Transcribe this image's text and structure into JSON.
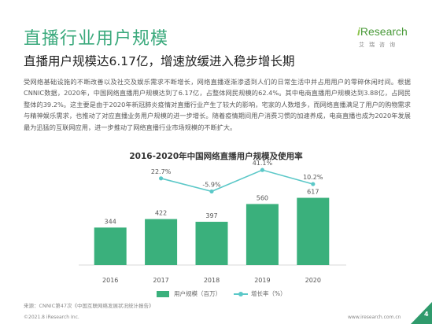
{
  "header": {
    "title": "直播行业用户规模",
    "logo_i": "i",
    "logo_text": "Research",
    "logo_sub": "艾瑞咨询"
  },
  "subtitle": "直播用户规模达6.17亿，增速放缓进入稳步增长期",
  "body": "受网络基础设施的不断改善以及社交及娱乐需求不断增长，网络直播逐渐渗透到人们的日常生活中并占用用户的零碎休闲时间。根据CNNIC数据，2020年，中国网络直播用户规模达到了6.17亿，占整体网民规模的62.4%。其中电商直播用户规模达到3.88亿，占网民整体的39.2%。这主要是由于2020年新冠肺炎疫情对直播行业产生了较大的影响，宅家的人数增多，而网络直播满足了用户的购物需求与精神娱乐需求，也推动了对应直播业务用户规模的进一步增长。随着疫情期间用户消费习惯的加速养成，电商直播也成为2020年发展最为迅猛的互联网应用，进一步推动了网络直播行业市场规模的不断扩大。",
  "chart_data": {
    "type": "bar",
    "title": "2016-2020年中国网络直播用户规模及使用率",
    "categories": [
      "2016",
      "2017",
      "2018",
      "2019",
      "2020"
    ],
    "series": [
      {
        "name": "用户规模（百万）",
        "type": "bar",
        "values": [
          344,
          422,
          397,
          560,
          617
        ],
        "labels": [
          "344",
          "422",
          "397",
          "560",
          "617"
        ],
        "color": "#3ab07c"
      },
      {
        "name": "增长率（%）",
        "type": "line",
        "values": [
          null,
          22.7,
          -5.9,
          41.1,
          10.2
        ],
        "labels": [
          "",
          "22.7%",
          "-5.9%",
          "41.1%",
          "10.2%"
        ],
        "color": "#5bc8c8"
      }
    ],
    "ylim_bar": [
      0,
      700
    ],
    "ylim_line": [
      -60,
      60
    ],
    "grid": true,
    "legend_position": "bottom"
  },
  "legend": {
    "bar_label": "用户规模（百万）",
    "line_label": "增长率（%）"
  },
  "footer": {
    "source": "来源：CNNIC第47次《中国互联网络发展状况统计报告》",
    "copyright": "©2021.8 iResearch Inc.",
    "website": "www.iresearch.com.cn",
    "page": "4"
  },
  "colors": {
    "title": "#3aa97c",
    "bar": "#3ab07c",
    "line": "#5bc8c8",
    "corner": "#2f9a6c"
  }
}
